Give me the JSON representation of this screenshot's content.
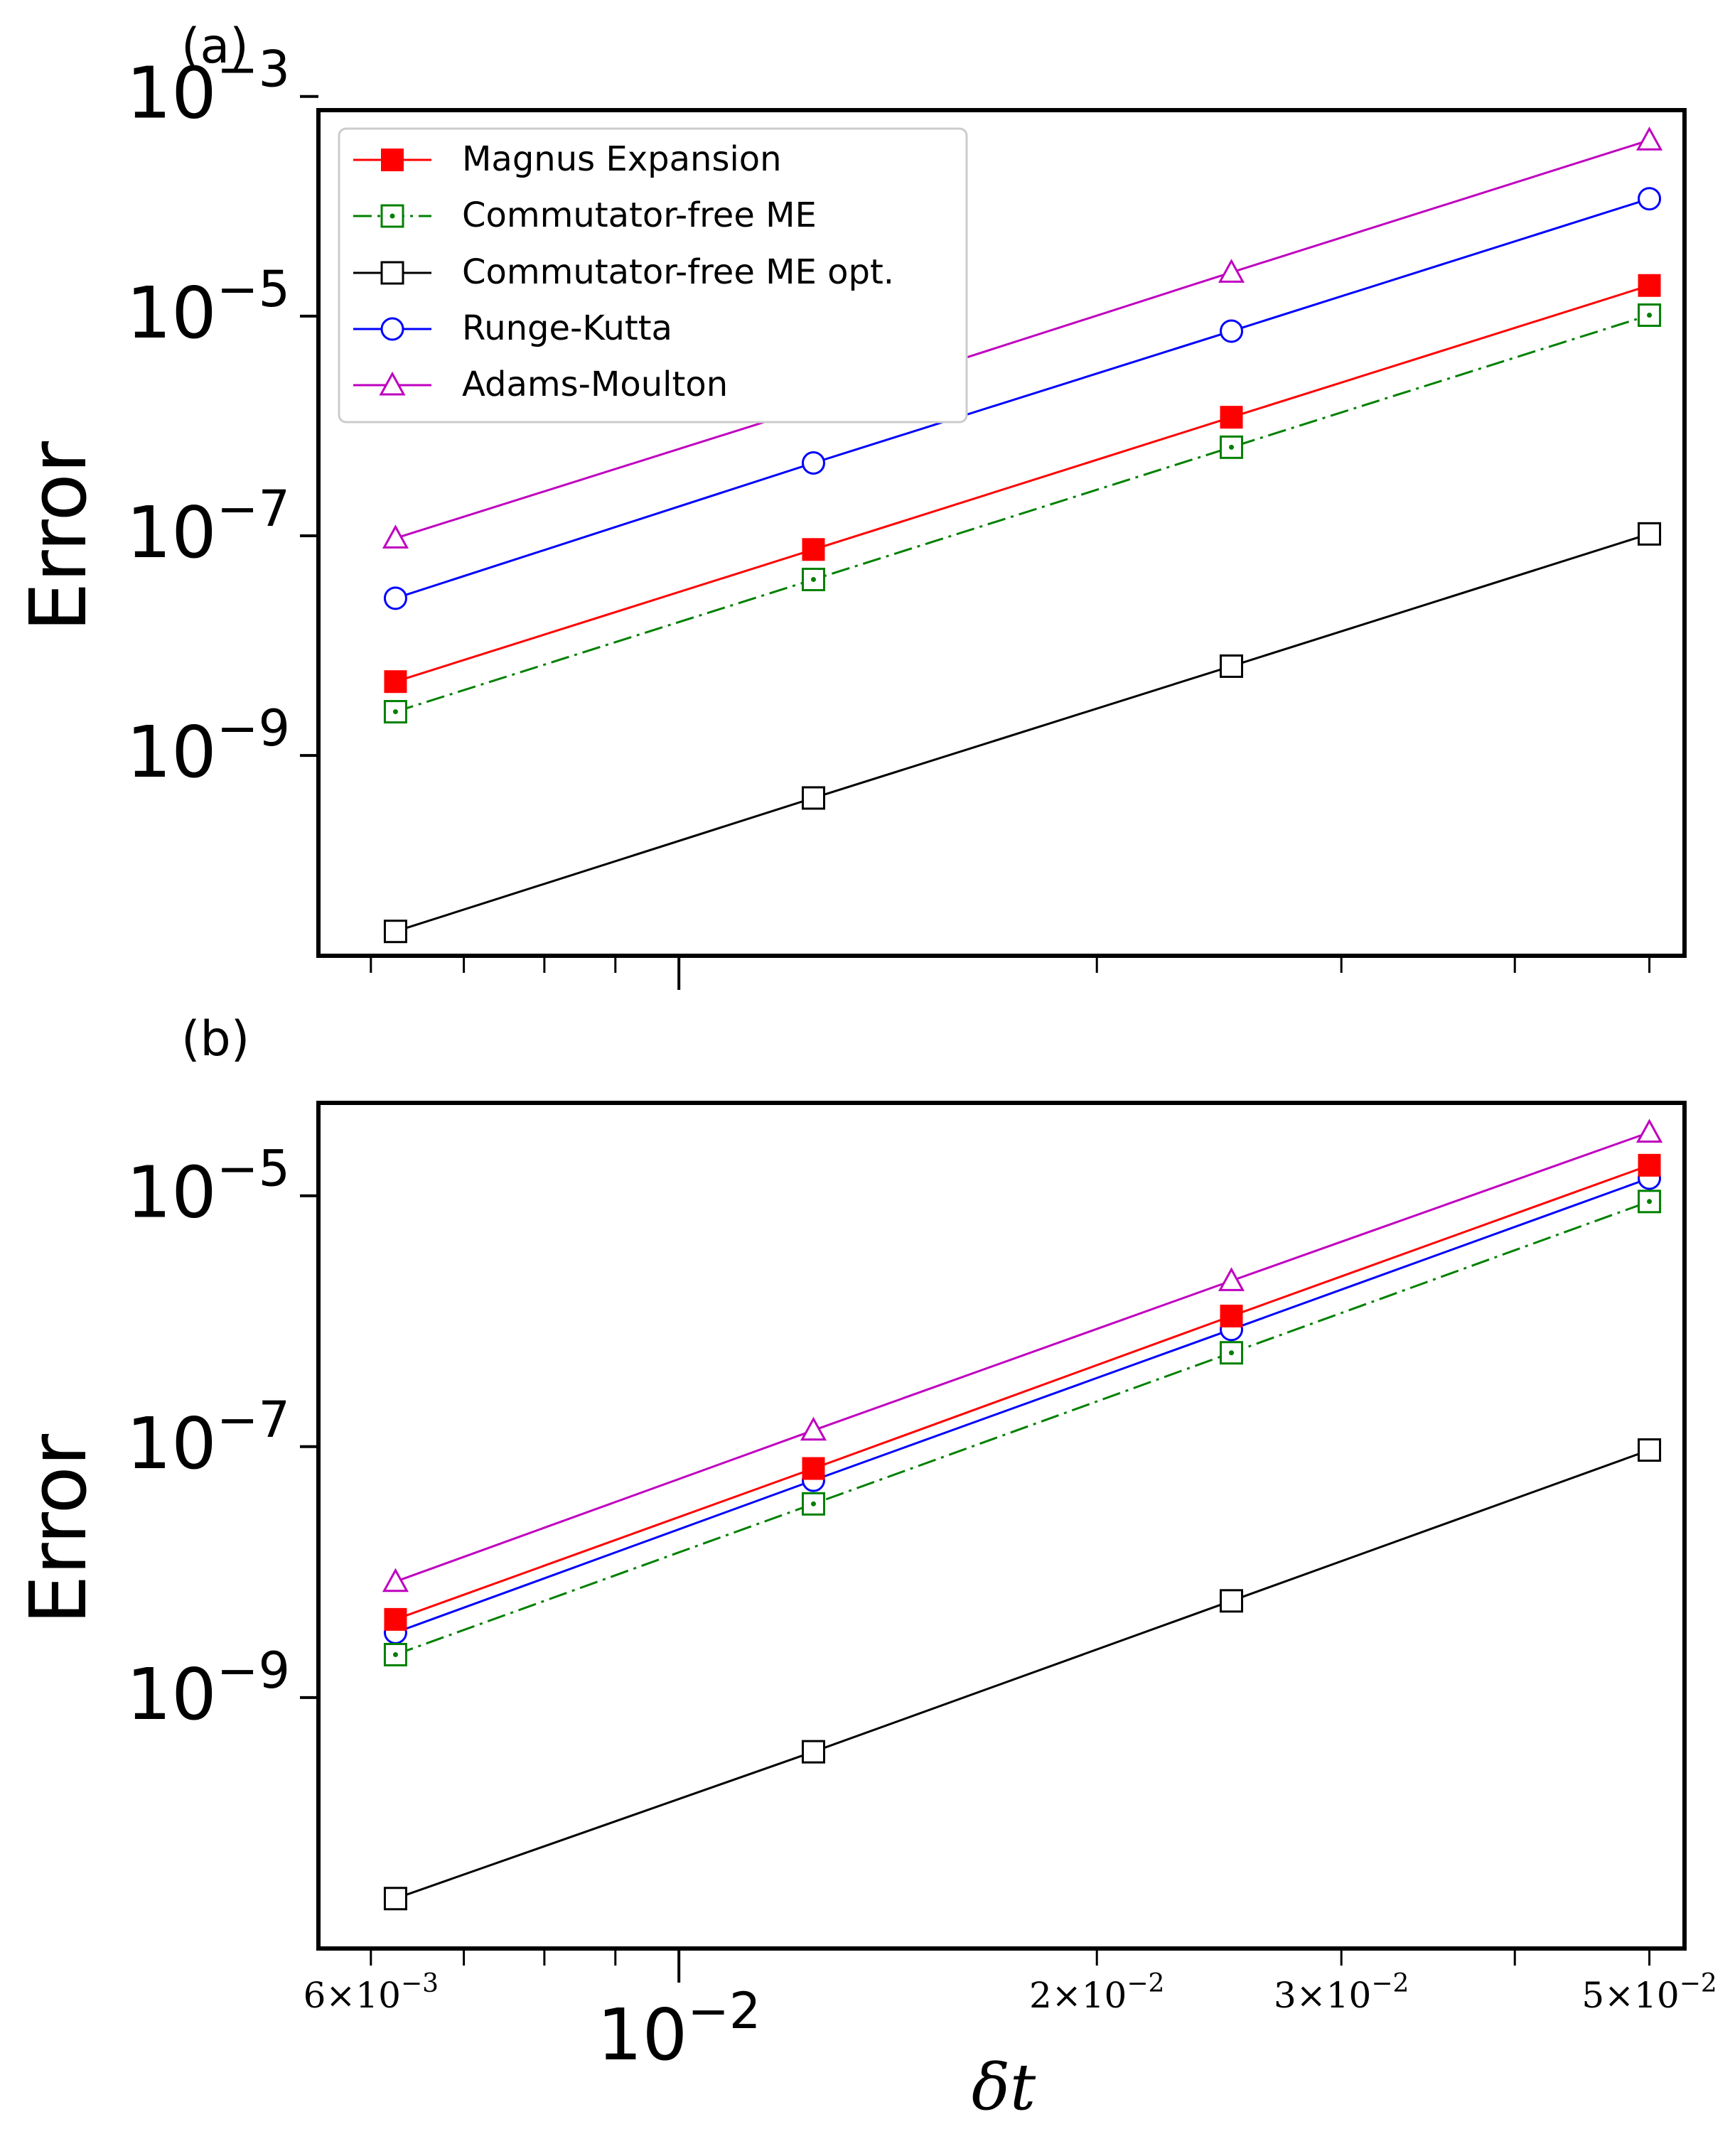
{
  "figure": {
    "xlabel_symbol": "δ",
    "xlabel_var": "t"
  },
  "axis": {
    "major_tick_label_base": "10",
    "major_tick_label_exp": "−2",
    "minor_ticks": [
      {
        "coef": "6",
        "times": "×",
        "base": "10",
        "exp": "−3",
        "value": 0.006
      },
      {
        "coef": "2",
        "times": "×",
        "base": "10",
        "exp": "−2",
        "value": 0.02
      },
      {
        "coef": "3",
        "times": "×",
        "base": "10",
        "exp": "−2",
        "value": 0.03
      },
      {
        "coef": "5",
        "times": "×",
        "base": "10",
        "exp": "−2",
        "value": 0.05
      }
    ]
  },
  "colors": {
    "magnus": "#ff0000",
    "commutator_free": "#008000",
    "commutator_free_opt": "#000000",
    "runge_kutta": "#0000ff",
    "adams_moulton": "#bf00bf"
  },
  "chart_data": [
    {
      "type": "line",
      "panel_label": "(a)",
      "ylabel": "Error",
      "xscale": "log",
      "yscale": "log",
      "xlim": [
        0.0055,
        0.053
      ],
      "ylim": [
        1.5e-11,
        0.00075
      ],
      "x": [
        0.00625,
        0.0125,
        0.025,
        0.05
      ],
      "yticks": [
        {
          "base": "10",
          "exp": "−9",
          "value": 1e-09
        },
        {
          "base": "10",
          "exp": "−7",
          "value": 1e-07
        },
        {
          "base": "10",
          "exp": "−5",
          "value": 1e-05
        },
        {
          "base": "10",
          "exp": "−3",
          "value": 0.001
        }
      ],
      "legend": {
        "position": "top-left"
      },
      "series": [
        {
          "key": "magnus",
          "name": "Magnus Expansion",
          "marker": "filled-square",
          "line": "solid",
          "values": [
            4.7e-09,
            7.5e-08,
            1.2e-06,
            1.9e-05
          ]
        },
        {
          "key": "commutator_free",
          "name": "Commutator-free ME",
          "marker": "dotted-square",
          "line": "dashdot",
          "values": [
            2.5e-09,
            4e-08,
            6.4e-07,
            1.02e-05
          ]
        },
        {
          "key": "commutator_free_opt",
          "name": "Commutator-free ME opt.",
          "marker": "open-square",
          "line": "solid",
          "values": [
            2.5e-11,
            4.1e-10,
            6.5e-09,
            1.04e-07
          ]
        },
        {
          "key": "runge_kutta",
          "name": "Runge-Kutta",
          "marker": "open-circle",
          "line": "solid",
          "values": [
            2.7e-08,
            4.6e-07,
            7.3e-06,
            0.000117
          ]
        },
        {
          "key": "adams_moulton",
          "name": "Adams-Moulton",
          "marker": "open-triangle",
          "line": "solid",
          "values": [
            9.5e-08,
            1.5e-06,
            2.5e-05,
            0.0004
          ]
        }
      ]
    },
    {
      "type": "line",
      "panel_label": "(b)",
      "ylabel": "Error",
      "xscale": "log",
      "yscale": "log",
      "xlim": [
        0.0055,
        0.053
      ],
      "ylim": [
        1e-11,
        5.5e-05
      ],
      "x": [
        0.00625,
        0.0125,
        0.025,
        0.05
      ],
      "yticks": [
        {
          "base": "10",
          "exp": "−9",
          "value": 1e-09
        },
        {
          "base": "10",
          "exp": "−7",
          "value": 1e-07
        },
        {
          "base": "10",
          "exp": "−5",
          "value": 1e-05
        }
      ],
      "series": [
        {
          "key": "magnus",
          "name": "Magnus Expansion",
          "marker": "filled-square",
          "line": "solid",
          "values": [
            4.2e-09,
            6.7e-08,
            1.1e-06,
            1.75e-05
          ]
        },
        {
          "key": "commutator_free",
          "name": "Commutator-free ME",
          "marker": "dotted-square",
          "line": "dashdot",
          "values": [
            2.2e-09,
            3.5e-08,
            5.6e-07,
            9e-06
          ]
        },
        {
          "key": "commutator_free_opt",
          "name": "Commutator-free ME opt.",
          "marker": "open-square",
          "line": "solid",
          "values": [
            2.5e-11,
            3.7e-10,
            5.9e-09,
            9.4e-08
          ]
        },
        {
          "key": "runge_kutta",
          "name": "Runge-Kutta",
          "marker": "open-circle",
          "line": "solid",
          "values": [
            3.3e-09,
            5.4e-08,
            8.6e-07,
            1.38e-05
          ]
        },
        {
          "key": "adams_moulton",
          "name": "Adams-Moulton",
          "marker": "open-triangle",
          "line": "solid",
          "values": [
            8.4e-09,
            1.35e-07,
            2.1e-06,
            3.2e-05
          ]
        }
      ]
    }
  ]
}
